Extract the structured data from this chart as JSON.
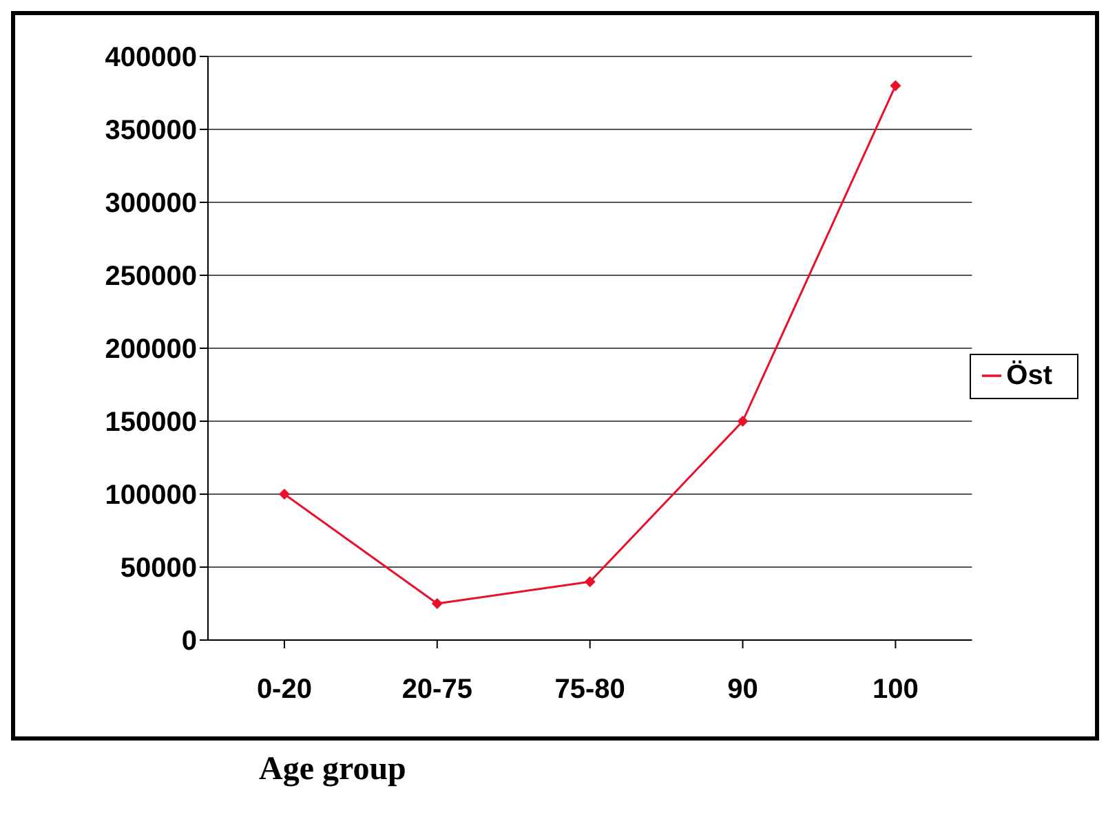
{
  "chart_data": {
    "type": "line",
    "xlabel": "Age group",
    "categories": [
      "0-20",
      "20-75",
      "75-80",
      "90",
      "100"
    ],
    "series": [
      {
        "name": "Öst",
        "color": "#e8102a",
        "values": [
          100000,
          25000,
          40000,
          150000,
          380000
        ]
      }
    ],
    "ylim": [
      0,
      400000
    ],
    "yticks": [
      0,
      50000,
      100000,
      150000,
      200000,
      250000,
      300000,
      350000,
      400000
    ],
    "grid": "y",
    "legend": "right",
    "marker": "diamond",
    "line_style": "solid"
  }
}
